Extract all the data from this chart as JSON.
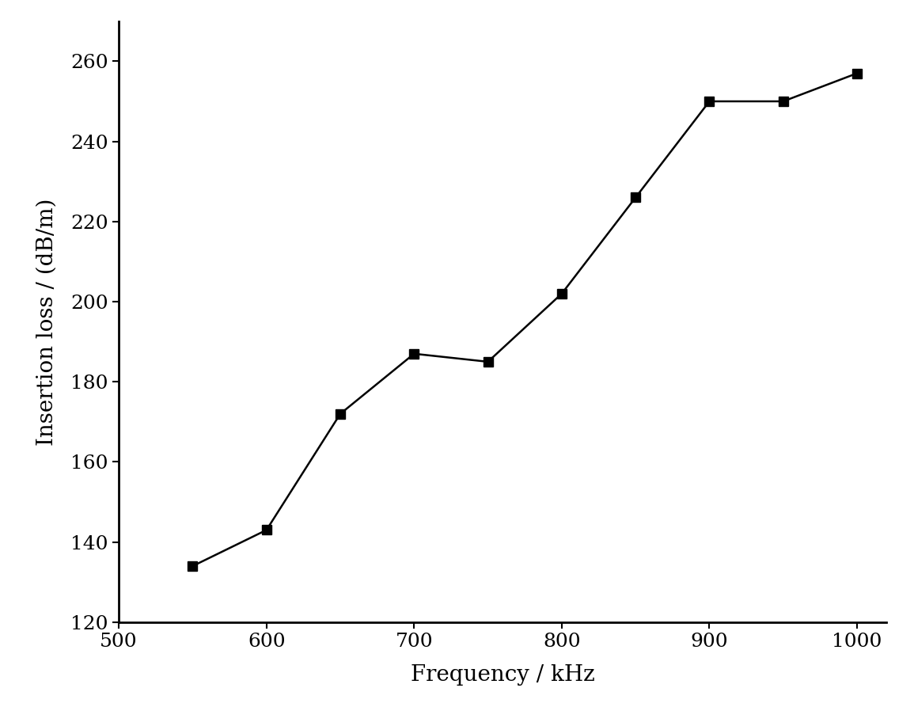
{
  "x": [
    550,
    600,
    650,
    700,
    750,
    800,
    850,
    900,
    950,
    1000
  ],
  "y": [
    134,
    143,
    172,
    187,
    185,
    202,
    226,
    250,
    250,
    257
  ],
  "xlabel": "Frequency / kHz",
  "ylabel": "Insertion loss / (dB/m)",
  "xlim": [
    500,
    1020
  ],
  "ylim": [
    120,
    270
  ],
  "xticks": [
    500,
    600,
    700,
    800,
    900,
    1000
  ],
  "yticks": [
    120,
    140,
    160,
    180,
    200,
    220,
    240,
    260
  ],
  "line_color": "#000000",
  "marker": "s",
  "marker_size": 9,
  "marker_color": "#000000",
  "linewidth": 1.8,
  "background_color": "#ffffff",
  "xlabel_fontsize": 20,
  "ylabel_fontsize": 20,
  "tick_fontsize": 18,
  "spine_linewidth": 2.0,
  "font_family": "serif"
}
